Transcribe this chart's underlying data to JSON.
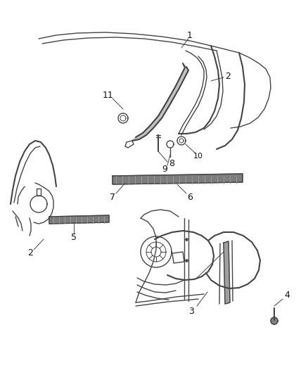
{
  "bg_color": "#ffffff",
  "line_color": "#444444",
  "label_color": "#111111",
  "figsize": [
    4.39,
    5.33
  ],
  "dpi": 100
}
